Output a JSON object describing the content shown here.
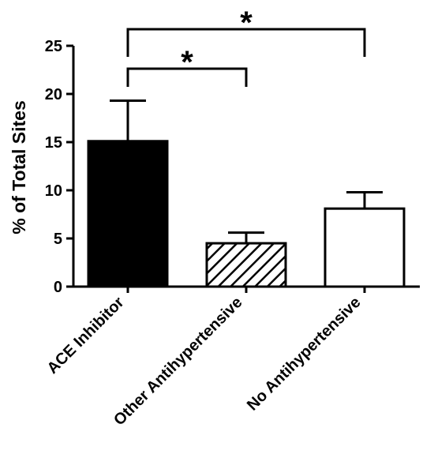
{
  "chart_data": {
    "type": "bar",
    "ylabel": "% of Total Sites",
    "ylim": [
      0,
      25
    ],
    "yticks": [
      0,
      5,
      10,
      15,
      20,
      25
    ],
    "categories": [
      "ACE Inhibitor",
      "Other Antihypertensive",
      "No Antihypertensive"
    ],
    "values": [
      15.1,
      4.5,
      8.1
    ],
    "error_upper": [
      4.2,
      1.1,
      1.7
    ],
    "bar_fills": [
      "solid-black",
      "diagonal-hatch",
      "white"
    ],
    "significance": [
      {
        "from": "ACE Inhibitor",
        "to": "Other Antihypertensive",
        "label": "*"
      },
      {
        "from": "ACE Inhibitor",
        "to": "No Antihypertensive",
        "label": "*"
      }
    ]
  }
}
